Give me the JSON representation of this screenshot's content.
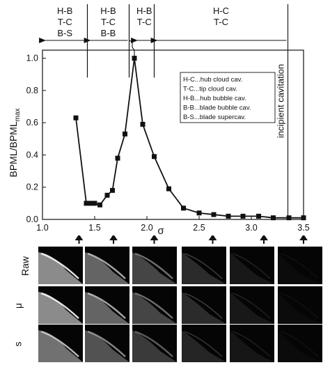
{
  "chart_data": {
    "type": "line",
    "xlabel": "σ",
    "ylabel": "BPML/BPML",
    "ylabel_sub": "max",
    "xlim": [
      1.0,
      3.5
    ],
    "ylim": [
      0.0,
      1.05
    ],
    "xticks": [
      "1.0",
      "1.5",
      "2.0",
      "2.5",
      "3.0",
      "3.5"
    ],
    "yticks": [
      "0.0",
      "0.2",
      "0.4",
      "0.6",
      "0.8",
      "1.0"
    ],
    "grid": false,
    "series": [
      {
        "marker": "square",
        "x": [
          1.32,
          1.42,
          1.46,
          1.5,
          1.55,
          1.62,
          1.67,
          1.72,
          1.79,
          1.88,
          1.96,
          2.07,
          2.21,
          2.35,
          2.5,
          2.64,
          2.78,
          2.92,
          3.07,
          3.21,
          3.36,
          3.5
        ],
        "y": [
          0.63,
          0.1,
          0.1,
          0.1,
          0.09,
          0.15,
          0.18,
          0.38,
          0.53,
          1.0,
          0.59,
          0.39,
          0.19,
          0.07,
          0.04,
          0.03,
          0.02,
          0.02,
          0.02,
          0.01,
          0.01,
          0.01
        ]
      }
    ],
    "regions": [
      {
        "lines": [
          "H-B",
          "T-C",
          "B-S"
        ],
        "x_from": 1.0,
        "x_to": 1.43
      },
      {
        "lines": [
          "H-B",
          "T-C",
          "B-B"
        ],
        "x_from": 1.43,
        "x_to": 1.83
      },
      {
        "lines": [
          "H-B",
          "T-C"
        ],
        "x_from": 1.88,
        "x_to": 2.07
      },
      {
        "lines": [
          "H-C",
          "T-C"
        ],
        "x_from": 2.07,
        "x_to": 3.35
      }
    ],
    "incipient_line_x": 3.35,
    "incipient_label": "incipient cavitation",
    "legend": [
      "H-C...hub cloud cav.",
      "T-C...tip cloud cav.",
      "H-B...hub bubble cav.",
      "B-B...blade bubble cav.",
      "B-S...blade supercav."
    ],
    "legend_position": "upper-right"
  },
  "image_panel": {
    "row_labels": [
      "Raw",
      "μ",
      "s"
    ],
    "sample_sigma": [
      1.35,
      1.68,
      2.07,
      2.63,
      3.12,
      3.5
    ]
  }
}
